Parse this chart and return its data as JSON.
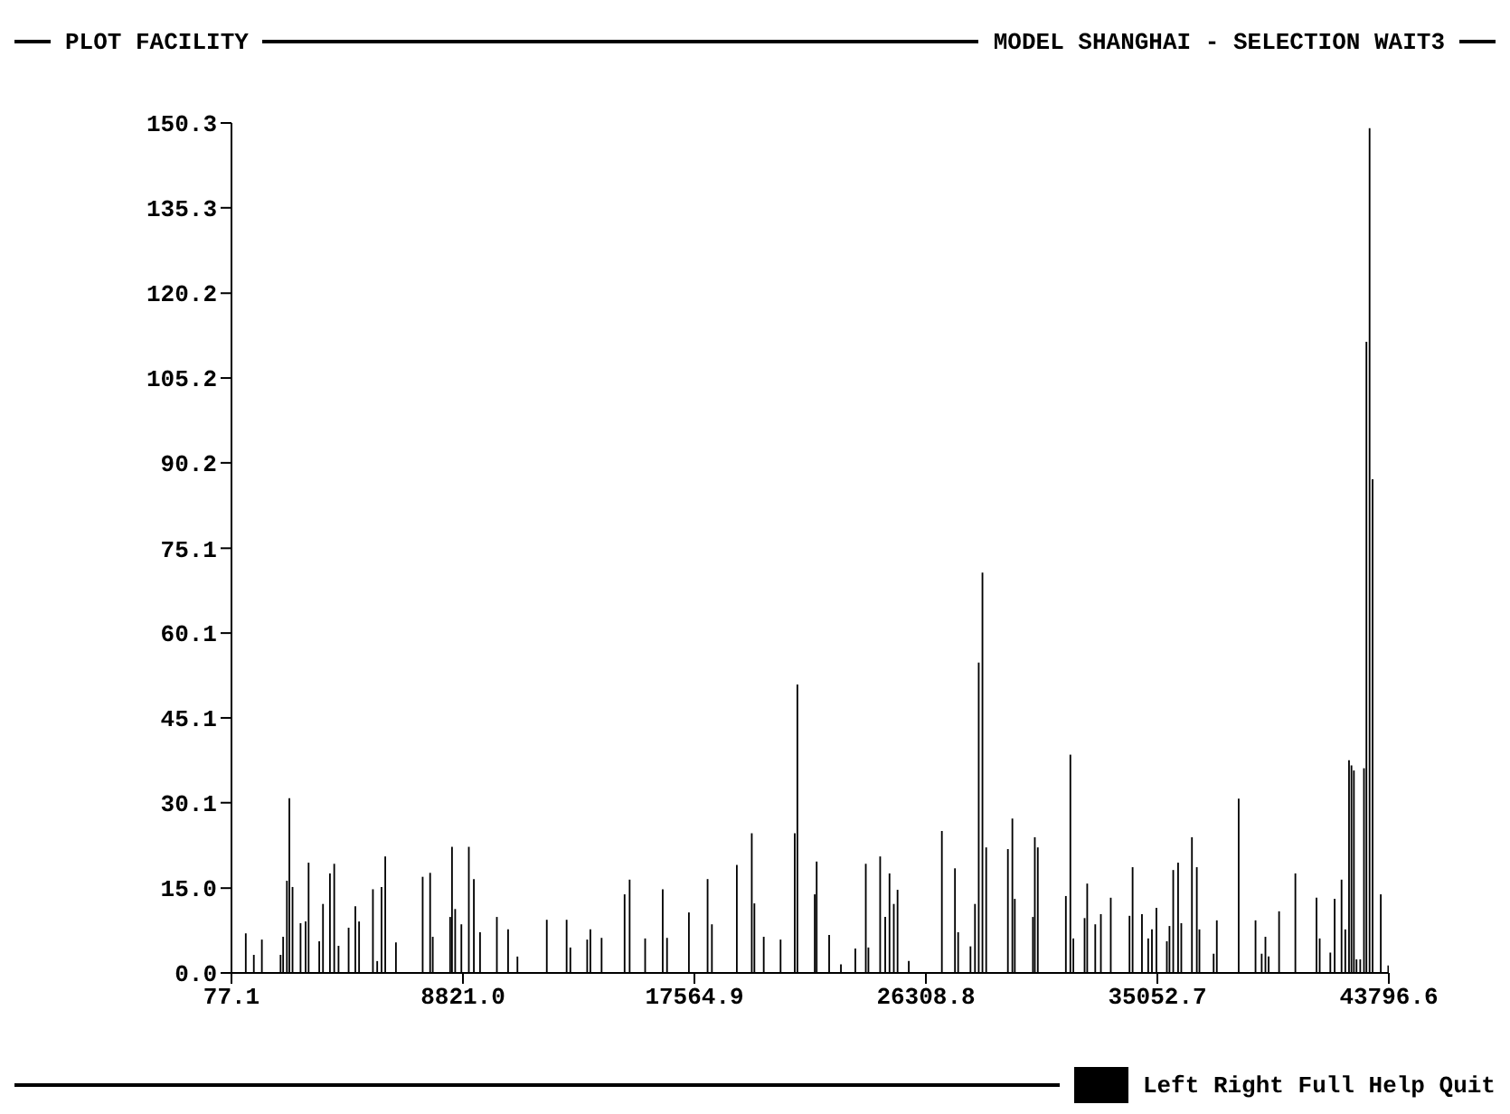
{
  "chart_data": {
    "type": "bar",
    "title": "PLOT FACILITY",
    "subtitle": "MODEL SHANGHAI - SELECTION WAIT3",
    "annotations": [
      "Left Right Full Help Quit"
    ],
    "color": "#000000",
    "xlim": [
      77.1,
      43796.6
    ],
    "xticks": [
      77.1,
      {
        "value": 8821,
        "label": "8821.0"
      },
      17564.9,
      26308.8,
      35052.7,
      43796.6
    ],
    "ylim": [
      0,
      150.3
    ],
    "yticks": [
      {
        "value": 0,
        "label": "0.0"
      },
      {
        "value": 15,
        "label": "15.0"
      },
      30.1,
      45.1,
      60.1,
      75.1,
      90.2,
      105.2,
      120.2,
      135.3,
      150.3
    ],
    "x": [
      621,
      925,
      1229,
      1935,
      2033,
      2175,
      2267,
      2387,
      2690,
      2881,
      2994,
      3397,
      3538,
      3800,
      3962,
      4125,
      4506,
      4760,
      4901,
      5424,
      5586,
      5749,
      5890,
      6293,
      7303,
      7585,
      7684,
      8341,
      8411,
      8531,
      8765,
      9047,
      9237,
      9470,
      10106,
      10530,
      10883,
      11992,
      12741,
      12882,
      13518,
      13638,
      14062,
      14931,
      15121,
      15707,
      16371,
      16534,
      17360,
      18066,
      18229,
      19170,
      19735,
      19834,
      20187,
      20823,
      21105,
      21359,
      21458,
      22115,
      22186,
      22658,
      23103,
      23647,
      24042,
      24141,
      24585,
      24776,
      24938,
      25100,
      25242,
      25666,
      26916,
      27411,
      27531,
      27997,
      28167,
      28308,
      28449,
      28590,
      29410,
      29579,
      29671,
      30356,
      30427,
      30540,
      31600,
      31770,
      31883,
      32307,
      32406,
      32710,
      32922,
      33296,
      34004,
      34121,
      34474,
      34710,
      34851,
      35020,
      35415,
      35514,
      35655,
      35839,
      35960,
      36362,
      36546,
      36645,
      37182,
      37302,
      38128,
      38764,
      38997,
      39138,
      39259,
      39654,
      40269,
      41068,
      41188,
      41590,
      41753,
      42014,
      42155,
      42296,
      42388,
      42480,
      42579,
      42720,
      42861,
      42953,
      43073,
      43186,
      43306,
      43496,
      43779
    ],
    "values": [
      7.0,
      3.2,
      5.9,
      3.2,
      6.4,
      16.3,
      30.9,
      15.2,
      8.8,
      9.1,
      19.5,
      5.6,
      12.2,
      17.6,
      19.3,
      4.8,
      8.0,
      11.8,
      9.1,
      14.8,
      2.1,
      15.2,
      20.6,
      5.4,
      17.0,
      17.7,
      6.4,
      9.9,
      22.3,
      11.3,
      8.6,
      22.3,
      16.6,
      7.2,
      9.9,
      7.7,
      2.9,
      9.4,
      9.4,
      4.5,
      5.9,
      7.7,
      6.2,
      13.9,
      16.5,
      6.1,
      14.8,
      6.2,
      10.7,
      16.6,
      8.6,
      19.1,
      24.7,
      12.3,
      6.4,
      5.9,
      null,
      24.7,
      51.0,
      13.9,
      19.7,
      6.7,
      1.5,
      4.3,
      19.3,
      4.5,
      20.6,
      9.9,
      17.6,
      12.2,
      14.7,
      2.1,
      25.1,
      18.5,
      7.2,
      4.7,
      12.2,
      54.9,
      70.8,
      22.2,
      21.9,
      27.3,
      13.1,
      9.9,
      24.0,
      22.2,
      13.6,
      38.6,
      6.1,
      9.7,
      15.8,
      8.6,
      10.4,
      13.3,
      10.1,
      18.7,
      10.4,
      6.1,
      7.7,
      11.5,
      5.6,
      8.3,
      18.2,
      19.5,
      8.8,
      24.0,
      18.7,
      7.7,
      3.4,
      9.3,
      30.8,
      9.3,
      3.4,
      6.4,
      2.9,
      10.9,
      17.6,
      13.3,
      6.1,
      3.6,
      13.1,
      16.5,
      7.7,
      37.6,
      36.7,
      35.8,
      2.4,
      2.4,
      36.2,
      111.6,
      149.4,
      87.3,
      null,
      13.9,
      1.3
    ]
  }
}
